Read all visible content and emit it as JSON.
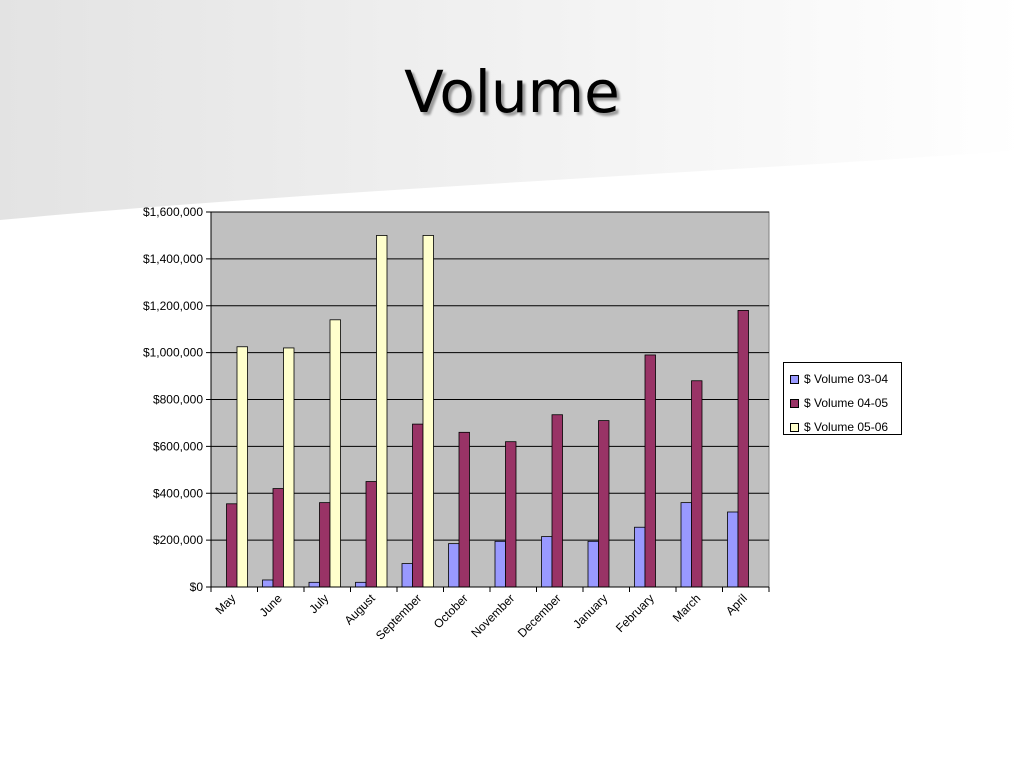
{
  "slide": {
    "title": "Volume"
  },
  "colors": {
    "plot_bg": "#c0c0c0",
    "grid": "#000000"
  },
  "chart_data": {
    "type": "bar",
    "title": "",
    "xlabel": "",
    "ylabel": "",
    "ylim": [
      0,
      1600000
    ],
    "yticks": [
      0,
      200000,
      400000,
      600000,
      800000,
      1000000,
      1200000,
      1400000,
      1600000
    ],
    "ytick_labels": [
      "$0",
      "$200,000",
      "$400,000",
      "$600,000",
      "$800,000",
      "$1,000,000",
      "$1,200,000",
      "$1,400,000",
      "$1,600,000"
    ],
    "grid": true,
    "legend_position": "right",
    "categories": [
      "May",
      "June",
      "July",
      "August",
      "September",
      "October",
      "November",
      "December",
      "January",
      "February",
      "March",
      "April"
    ],
    "series": [
      {
        "name": "$ Volume 03-04",
        "color": "#9999ff",
        "values": [
          0,
          30000,
          20000,
          20000,
          100000,
          185000,
          195000,
          215000,
          195000,
          255000,
          360000,
          320000
        ]
      },
      {
        "name": "$ Volume 04-05",
        "color": "#993366",
        "values": [
          355000,
          420000,
          360000,
          450000,
          695000,
          660000,
          620000,
          735000,
          710000,
          990000,
          880000,
          1180000
        ]
      },
      {
        "name": "$ Volume 05-06",
        "color": "#ffffcc",
        "values": [
          1025000,
          1020000,
          1140000,
          1500000,
          1500000,
          0,
          0,
          0,
          0,
          0,
          0,
          0
        ]
      }
    ]
  }
}
